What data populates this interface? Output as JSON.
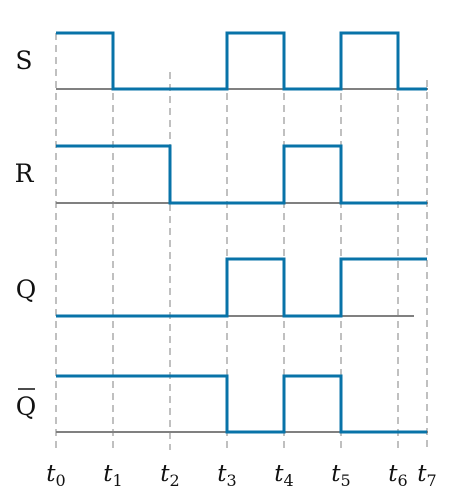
{
  "colors": {
    "waveform": "#0873a8",
    "baseline": "#808080",
    "guide": "#c0c0c0",
    "text": "#111111"
  },
  "time_labels": [
    {
      "base": "t",
      "sub": "0"
    },
    {
      "base": "t",
      "sub": "1"
    },
    {
      "base": "t",
      "sub": "2"
    },
    {
      "base": "t",
      "sub": "3"
    },
    {
      "base": "t",
      "sub": "4"
    },
    {
      "base": "t",
      "sub": "5"
    },
    {
      "base": "t",
      "sub": "6"
    },
    {
      "base": "t",
      "sub": "7"
    }
  ],
  "signals": [
    {
      "id": "s",
      "name": "S",
      "levels": [
        1,
        0,
        0,
        1,
        0,
        1,
        0
      ]
    },
    {
      "id": "r",
      "name": "R",
      "levels": [
        1,
        1,
        0,
        0,
        1,
        0,
        0
      ]
    },
    {
      "id": "q",
      "name": "Q",
      "levels": [
        0,
        0,
        0,
        1,
        0,
        1,
        1
      ]
    },
    {
      "id": "qbar",
      "name": "Q",
      "overline": true,
      "levels": [
        1,
        1,
        1,
        0,
        1,
        0,
        0
      ]
    }
  ]
}
